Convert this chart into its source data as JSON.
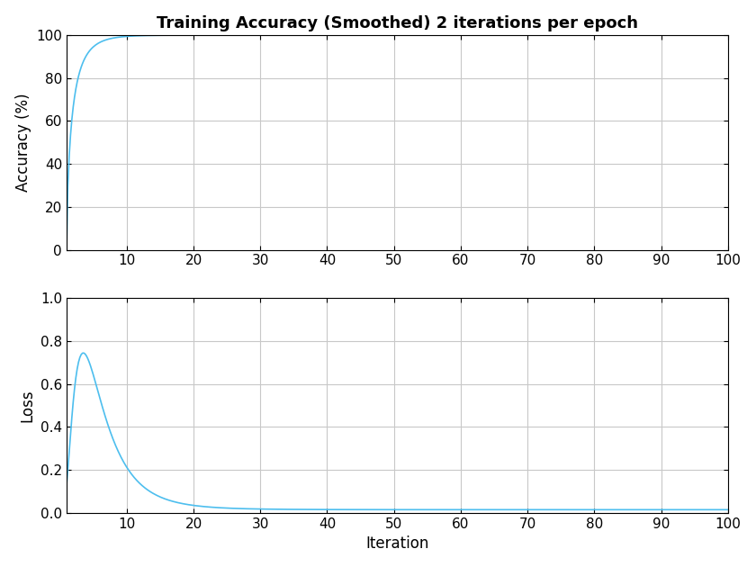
{
  "title": "Training Accuracy (Smoothed) 2 iterations per epoch",
  "ylabel_top": "Accuracy (%)",
  "ylabel_bottom": "Loss",
  "xlabel": "Iteration",
  "xlim": [
    1,
    100
  ],
  "acc_ylim": [
    0,
    100
  ],
  "loss_ylim": [
    0,
    1
  ],
  "acc_yticks": [
    0,
    20,
    40,
    60,
    80,
    100
  ],
  "loss_yticks": [
    0,
    0.2,
    0.4,
    0.6,
    0.8,
    1.0
  ],
  "xticks": [
    10,
    20,
    30,
    40,
    50,
    60,
    70,
    80,
    90,
    100
  ],
  "line_color": "#4DBEEE",
  "background_color": "#ffffff",
  "grid_color": "#c8c8c8",
  "title_fontsize": 13,
  "label_fontsize": 12,
  "tick_fontsize": 11
}
